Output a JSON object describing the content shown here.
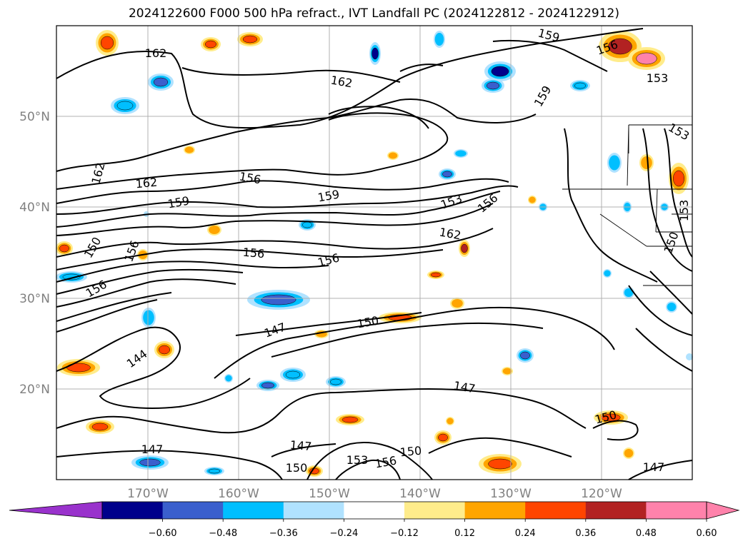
{
  "title": "2024122600 F000 500 hPa refract., IVT Landfall PC (2024122812 - 2024122912)",
  "map": {
    "lon_labels": [
      "170°W",
      "160°W",
      "150°W",
      "140°W",
      "130°W",
      "120°W"
    ],
    "lat_labels": [
      "50°N",
      "40°N",
      "30°N",
      "20°N"
    ],
    "contour_labels": [
      "162",
      "162",
      "162",
      "162",
      "159",
      "159",
      "159",
      "156",
      "156",
      "156",
      "156",
      "156",
      "156",
      "153",
      "153",
      "153",
      "153",
      "150",
      "150",
      "150",
      "150",
      "147",
      "147",
      "147",
      "147",
      "147",
      "144",
      "162",
      "156",
      "159",
      "156",
      "150",
      "153",
      "150"
    ],
    "colors": {
      "contour": "#000000",
      "grid": "#b0b0b0",
      "state_lines": "#000000"
    }
  },
  "colorbar": {
    "ticks": [
      "−0.60",
      "−0.48",
      "−0.36",
      "−0.24",
      "−0.12",
      "0.12",
      "0.24",
      "0.36",
      "0.48",
      "0.60"
    ],
    "colors": [
      "#9932cc",
      "#00008b",
      "#3a5fcd",
      "#00bfff",
      "#b0e2ff",
      "#ffffff",
      "#ffec8b",
      "#ffa500",
      "#ff4500",
      "#b22222",
      "#ff82ab"
    ]
  }
}
